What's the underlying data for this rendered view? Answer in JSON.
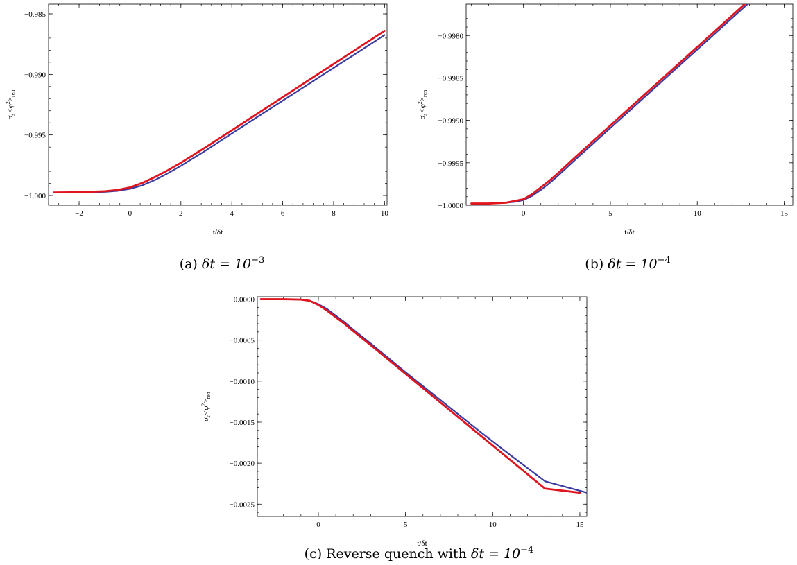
{
  "chart_data": [
    {
      "type": "line",
      "panel_id": "a",
      "caption_prefix": "(a)",
      "caption_math": "δt = 10",
      "caption_exp": "−3",
      "xlabel": "t/δt",
      "ylabel_base": "σ",
      "ylabel_sub": "s",
      "ylabel_mid": "<φ",
      "ylabel_sup": "2",
      "ylabel_end": ">",
      "ylabel_sub2": "ren",
      "xlim": [
        -3.2,
        10.1
      ],
      "ylim": [
        -1.0008,
        -0.9842
      ],
      "x_ticks": [
        -2,
        0,
        2,
        4,
        6,
        8,
        10
      ],
      "x_tick_labels": [
        "−2",
        "0",
        "2",
        "4",
        "6",
        "8",
        "10"
      ],
      "y_ticks": [
        -1.0,
        -0.995,
        -0.99,
        -0.985
      ],
      "y_tick_labels": [
        "−1.000",
        "−0.995",
        "−0.990",
        "−0.985"
      ],
      "series": [
        {
          "color": "#3a3aa0",
          "x": [
            -3,
            -2,
            -1,
            -0.5,
            0,
            0.5,
            1,
            1.5,
            2,
            3,
            4,
            5,
            6,
            7,
            8,
            9,
            10
          ],
          "y": [
            -0.99975,
            -0.99974,
            -0.9997,
            -0.99962,
            -0.99945,
            -0.99915,
            -0.9987,
            -0.99815,
            -0.99755,
            -0.99625,
            -0.99488,
            -0.99352,
            -0.99217,
            -0.99082,
            -0.98946,
            -0.98811,
            -0.98675
          ]
        },
        {
          "color": "#e0141e",
          "x": [
            -3,
            -2,
            -1,
            -0.5,
            0,
            0.5,
            1,
            1.5,
            2,
            3,
            4,
            5,
            6,
            7,
            8,
            9,
            10
          ],
          "y": [
            -0.99975,
            -0.99973,
            -0.99965,
            -0.99955,
            -0.99933,
            -0.99895,
            -0.99845,
            -0.9979,
            -0.9973,
            -0.99598,
            -0.99462,
            -0.99325,
            -0.99188,
            -0.99051,
            -0.98914,
            -0.98777,
            -0.9864
          ]
        }
      ]
    },
    {
      "type": "line",
      "panel_id": "b",
      "caption_prefix": "(b)",
      "caption_math": "δt = 10",
      "caption_exp": "−4",
      "xlabel": "t/δt",
      "ylabel_base": "σ",
      "ylabel_sub": "s",
      "ylabel_mid": "<φ",
      "ylabel_sup": "2",
      "ylabel_end": ">",
      "ylabel_sub2": "ren",
      "xlim": [
        -3.3,
        15.5
      ],
      "ylim": [
        -1.0,
        -0.99763
      ],
      "x_ticks": [
        0,
        5,
        10,
        15
      ],
      "x_tick_labels": [
        "0",
        "5",
        "10",
        "15"
      ],
      "y_ticks": [
        -1.0,
        -0.9995,
        -0.999,
        -0.9985,
        -0.998
      ],
      "y_tick_labels": [
        "−1.0000",
        "−0.9995",
        "−0.9990",
        "−0.9985",
        "−0.9980"
      ],
      "series": [
        {
          "color": "#3a3aa0",
          "x": [
            -3,
            -2,
            -1,
            -0.5,
            0,
            0.5,
            1,
            1.5,
            2,
            3,
            5,
            7,
            9,
            11,
            13,
            15
          ],
          "y": [
            -0.99998,
            -0.99998,
            -0.99997,
            -0.99996,
            -0.99994,
            -0.99989,
            -0.99982,
            -0.99974,
            -0.99965,
            -0.99946,
            -0.99909,
            -0.99872,
            -0.99835,
            -0.99798,
            -0.99761,
            -0.99724
          ]
        },
        {
          "color": "#e0141e",
          "x": [
            -3,
            -2,
            -1,
            -0.5,
            0,
            0.5,
            1,
            1.5,
            2,
            3,
            5,
            7,
            9,
            11,
            13,
            15
          ],
          "y": [
            -0.99998,
            -0.99998,
            -0.99997,
            -0.99995,
            -0.99993,
            -0.99987,
            -0.99979,
            -0.99971,
            -0.99962,
            -0.99943,
            -0.99906,
            -0.99869,
            -0.99832,
            -0.99795,
            -0.99758,
            -0.99721
          ]
        }
      ]
    },
    {
      "type": "line",
      "panel_id": "c",
      "caption_prefix": "(c)",
      "caption_text": "Reverse quench with",
      "caption_math": "δt = 10",
      "caption_exp": "−4",
      "xlabel": "t/δt",
      "ylabel_base": "σ",
      "ylabel_sub": "s",
      "ylabel_mid": "<φ",
      "ylabel_sup": "2",
      "ylabel_end": ">",
      "ylabel_sub2": "ren",
      "xlim": [
        -3.5,
        15.4
      ],
      "ylim": [
        -0.00265,
        3e-05
      ],
      "x_ticks": [
        0,
        5,
        10,
        15
      ],
      "x_tick_labels": [
        "0",
        "5",
        "10",
        "15"
      ],
      "y_ticks": [
        0.0,
        -0.0005,
        -0.001,
        -0.0015,
        -0.002,
        -0.0025
      ],
      "y_tick_labels": [
        "0.0000",
        "−0.0005",
        "−0.0010",
        "−0.0015",
        "−0.0020",
        "−0.0025"
      ],
      "series": [
        {
          "color": "#3a3aa0",
          "x": [
            -3.3,
            -2,
            -1,
            -0.5,
            0,
            0.5,
            1,
            1.5,
            2,
            3,
            5,
            7,
            9,
            11,
            13,
            15.4
          ],
          "y": [
            0.0,
            0.0,
            -5e-06,
            -2e-05,
            -6e-05,
            -0.00012,
            -0.0002,
            -0.00028,
            -0.00037,
            -0.00054,
            -0.00089,
            -0.00123,
            -0.00157,
            -0.0019,
            -0.00222,
            -0.00236
          ]
        },
        {
          "color": "#e0141e",
          "x": [
            -3.3,
            -2,
            -1,
            -0.5,
            0,
            0.5,
            1,
            1.5,
            2,
            3,
            5,
            7,
            9,
            11,
            13,
            15
          ],
          "y": [
            0.0,
            0.0,
            -5e-06,
            -2e-05,
            -7e-05,
            -0.00014,
            -0.00022,
            -0.0003,
            -0.00039,
            -0.00056,
            -0.00091,
            -0.00126,
            -0.00161,
            -0.00196,
            -0.00231,
            -0.00236
          ]
        }
      ]
    }
  ]
}
